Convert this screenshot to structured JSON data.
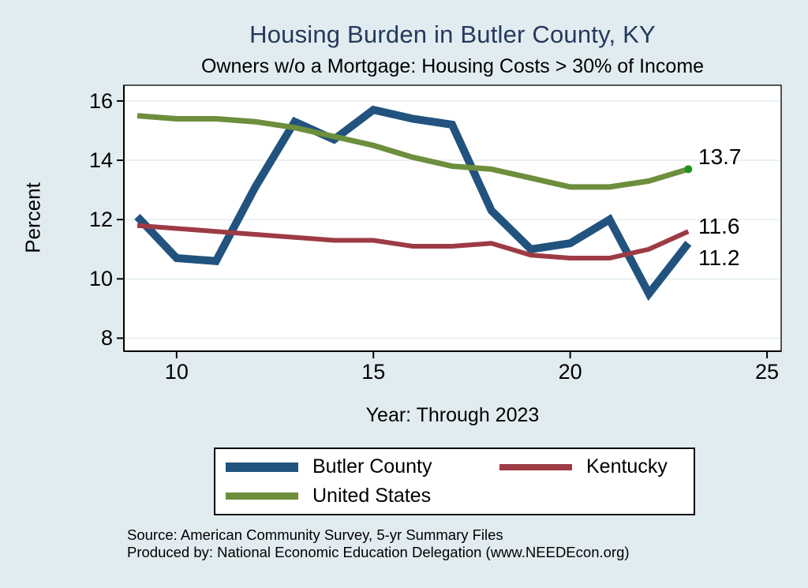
{
  "title": "Housing Burden in Butler County, KY",
  "subtitle": "Owners w/o a Mortgage: Housing Costs > 30% of Income",
  "source_line1": "Source: American Community Survey, 5-yr Summary Files",
  "source_line2": "Produced by: National Economic Education Delegation (www.NEEDEcon.org)",
  "colors": {
    "background": "#e1ecf0",
    "plot_bg": "#ffffff",
    "grid": "#e8f1f4",
    "axis": "#000000",
    "title_text": "#24395c",
    "body_text": "#000000",
    "butler": "#21537e",
    "kentucky": "#9d3b44",
    "us": "#6d8e3c",
    "end_dot": "#1e9320"
  },
  "chart_data": {
    "type": "line",
    "title": "Housing Burden in Butler County, KY",
    "subtitle": "Owners w/o a Mortgage: Housing Costs > 30% of Income",
    "xlabel": "Year: Through 2023",
    "ylabel": "Percent",
    "grid": "horizontal",
    "legend_position": "bottom",
    "x": [
      9,
      10,
      11,
      12,
      13,
      14,
      15,
      16,
      17,
      18,
      19,
      20,
      21,
      22,
      23
    ],
    "xticks": [
      10,
      15,
      20,
      25
    ],
    "yticks": [
      8,
      10,
      12,
      14,
      16
    ],
    "xlim": [
      8.66,
      25.36
    ],
    "ylim": [
      7.56,
      16.53
    ],
    "series": [
      {
        "id": "butler-county",
        "name": "Butler County",
        "color": "#21537e",
        "width": 10,
        "values": [
          12.1,
          10.7,
          10.6,
          13.1,
          15.3,
          14.7,
          15.7,
          15.4,
          15.2,
          12.3,
          11.0,
          11.2,
          12.0,
          9.5,
          11.2
        ],
        "end_label": "11.2",
        "end_marker": false
      },
      {
        "id": "kentucky",
        "name": "Kentucky",
        "color": "#9d3b44",
        "width": 6,
        "values": [
          11.8,
          11.7,
          11.6,
          11.5,
          11.4,
          11.3,
          11.3,
          11.1,
          11.1,
          11.2,
          10.8,
          10.7,
          10.7,
          11.0,
          11.6
        ],
        "end_label": "11.6",
        "end_marker": false
      },
      {
        "id": "united-states",
        "name": "United States",
        "color": "#6d8e3c",
        "width": 7,
        "values": [
          15.5,
          15.4,
          15.4,
          15.3,
          15.1,
          14.8,
          14.5,
          14.1,
          13.8,
          13.7,
          13.4,
          13.1,
          13.1,
          13.3,
          13.7
        ],
        "end_label": "13.7",
        "end_marker": true
      }
    ]
  }
}
